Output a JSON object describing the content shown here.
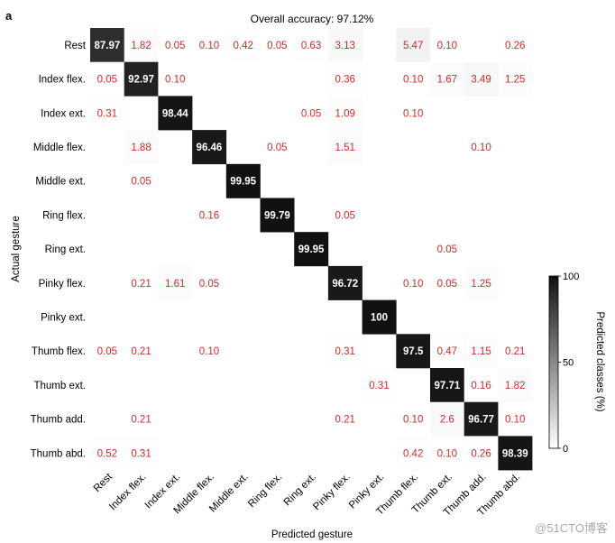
{
  "panel_label": "a",
  "watermark": "@51CTO博客",
  "chart_data": {
    "type": "heatmap",
    "title": "Overall accuracy: 97.12%",
    "xlabel": "Predicted gesture",
    "ylabel": "Actual gesture",
    "rows": [
      "Rest",
      "Index flex.",
      "Index ext.",
      "Middle flex.",
      "Middle ext.",
      "Ring flex.",
      "Ring ext.",
      "Pinky flex.",
      "Pinky ext.",
      "Thumb flex.",
      "Thumb ext.",
      "Thumb add.",
      "Thumb abd."
    ],
    "columns": [
      "Rest",
      "Index flex.",
      "Index ext.",
      "Middle flex.",
      "Middle ext.",
      "Ring flex.",
      "Ring ext.",
      "Pinky flex.",
      "Pinky ext.",
      "Thumb flex.",
      "Thumb ext.",
      "Thumb add.",
      "Thumb abd."
    ],
    "values": [
      [
        "87.97",
        "1.82",
        "0.05",
        "0.10",
        "0.42",
        "0.05",
        "0.63",
        "3.13",
        "",
        "5.47",
        "0.10",
        "",
        "0.26"
      ],
      [
        "0.05",
        "92.97",
        "0.10",
        "",
        "",
        "",
        "",
        "0.36",
        "",
        "0.10",
        "1.67",
        "3.49",
        "1.25"
      ],
      [
        "0.31",
        "",
        "98.44",
        "",
        "",
        "",
        "0.05",
        "1.09",
        "",
        "0.10",
        "",
        "",
        ""
      ],
      [
        "",
        "1.88",
        "",
        "96.46",
        "",
        "0.05",
        "",
        "1.51",
        "",
        "",
        "",
        "0.10",
        ""
      ],
      [
        "",
        "0.05",
        "",
        "",
        "99.95",
        "",
        "",
        "",
        "",
        "",
        "",
        "",
        ""
      ],
      [
        "",
        "",
        "",
        "0.16",
        "",
        "99.79",
        "",
        "0.05",
        "",
        "",
        "",
        "",
        ""
      ],
      [
        "",
        "",
        "",
        "",
        "",
        "",
        "99.95",
        "",
        "",
        "",
        "0.05",
        "",
        ""
      ],
      [
        "",
        "0.21",
        "1.61",
        "0.05",
        "",
        "",
        "",
        "96.72",
        "",
        "0.10",
        "0.05",
        "1.25",
        ""
      ],
      [
        "",
        "",
        "",
        "",
        "",
        "",
        "",
        "",
        "100",
        "",
        "",
        "",
        ""
      ],
      [
        "0.05",
        "0.21",
        "",
        "0.10",
        "",
        "",
        "",
        "0.31",
        "",
        "97.5",
        "0.47",
        "1.15",
        "0.21"
      ],
      [
        "",
        "",
        "",
        "",
        "",
        "",
        "",
        "",
        "0.31",
        "",
        "97.71",
        "0.16",
        "1.82"
      ],
      [
        "",
        "0.21",
        "",
        "",
        "",
        "",
        "",
        "0.21",
        "",
        "0.10",
        "2.6",
        "96.77",
        "0.10"
      ],
      [
        "0.52",
        "0.31",
        "",
        "",
        "",
        "",
        "",
        "",
        "",
        "0.42",
        "0.10",
        "0.26",
        "98.39"
      ]
    ],
    "colorbar": {
      "label": "Predicted classes (%)",
      "ticks": [
        "0",
        "50",
        "100"
      ],
      "range": [
        0,
        100
      ]
    },
    "colors": {
      "low": "#ffffff",
      "high": "#111111",
      "small_value_text": "#d42a2a",
      "large_value_text": "#ffffff"
    }
  }
}
